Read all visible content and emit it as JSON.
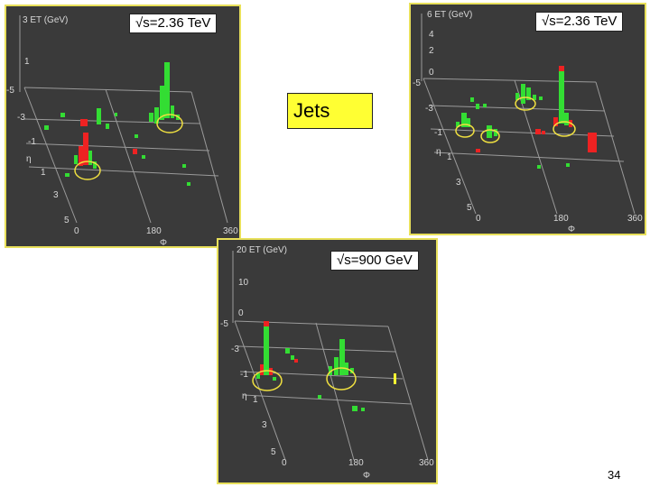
{
  "panels": [
    {
      "id": "top-left",
      "energy_label": "√s=2.36 TeV",
      "et_axis_label": "3 ET (GeV)",
      "et_ticks": [
        "1"
      ],
      "eta_label": "η",
      "eta_ticks": [
        "-5",
        "-3",
        "-1",
        "1",
        "3",
        "5"
      ],
      "phi_label": "Φ",
      "phi_ticks": [
        "0",
        "180",
        "360"
      ]
    },
    {
      "id": "top-right",
      "energy_label": "√s=2.36 TeV",
      "et_axis_label": "6 ET (GeV)",
      "et_ticks": [
        "4",
        "2",
        "0"
      ],
      "eta_label": "η",
      "eta_ticks": [
        "-5",
        "-3",
        "-1",
        "1",
        "3",
        "5"
      ],
      "phi_label": "Φ",
      "phi_ticks": [
        "0",
        "180",
        "360"
      ]
    },
    {
      "id": "bottom",
      "energy_label": "√s=900 GeV",
      "et_axis_label": "20 ET (GeV)",
      "et_ticks": [
        "10",
        "0"
      ],
      "eta_label": "η",
      "eta_ticks": [
        "-5",
        "-3",
        "-1",
        "1",
        "3",
        "5"
      ],
      "phi_label": "Φ",
      "phi_ticks": [
        "0",
        "180",
        "360"
      ]
    }
  ],
  "jets_label": "Jets",
  "page_number": "34",
  "colors": {
    "panel_bg": "#3a3a3a",
    "border": "#e8e05a",
    "grid": "#9a9a9a",
    "tower_green": "#33dd33",
    "tower_red": "#ee2222",
    "jet_ring": "#f0e040",
    "jets_box": "#ffff33"
  }
}
